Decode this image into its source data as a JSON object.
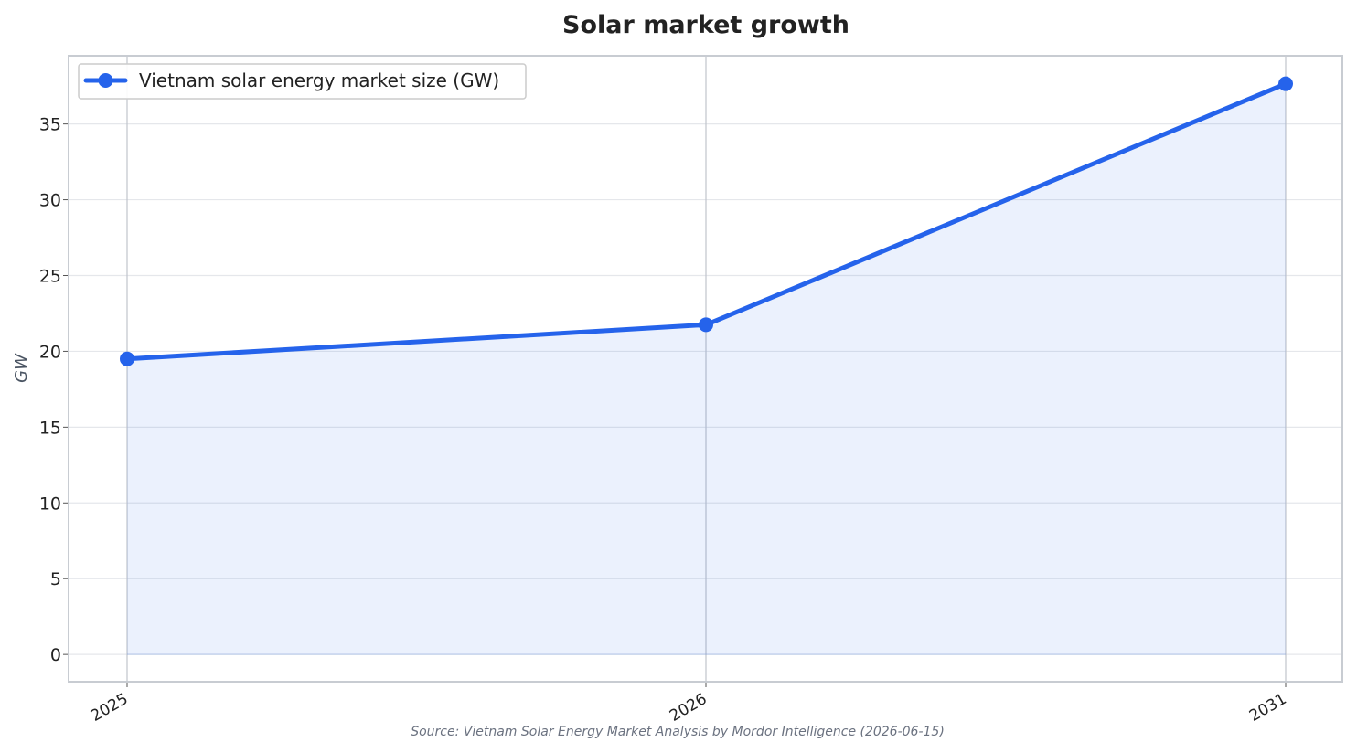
{
  "chart_data": {
    "type": "area",
    "title": "Solar market growth",
    "xlabel": "",
    "ylabel": "GW",
    "categories": [
      "2025",
      "2026",
      "2031"
    ],
    "series": [
      {
        "name": "Vietnam solar energy market size (GW)",
        "values": [
          19.5,
          21.75,
          37.65
        ]
      }
    ],
    "ylim": [
      -1.8,
      39.5
    ],
    "yticks": [
      0,
      5,
      10,
      15,
      20,
      25,
      30,
      35
    ],
    "legend": "top-left",
    "grid": true,
    "source": "Source: Vietnam Solar Energy Market Analysis by Mordor Intelligence (2026-06-15)",
    "colors": {
      "line": "#2563eb",
      "fill": "#2563eb",
      "grid": "#e5e7eb",
      "vline": "#c0c4cc",
      "frame": "#c8ccd2",
      "text": "#222222",
      "source": "#6b7280"
    }
  }
}
